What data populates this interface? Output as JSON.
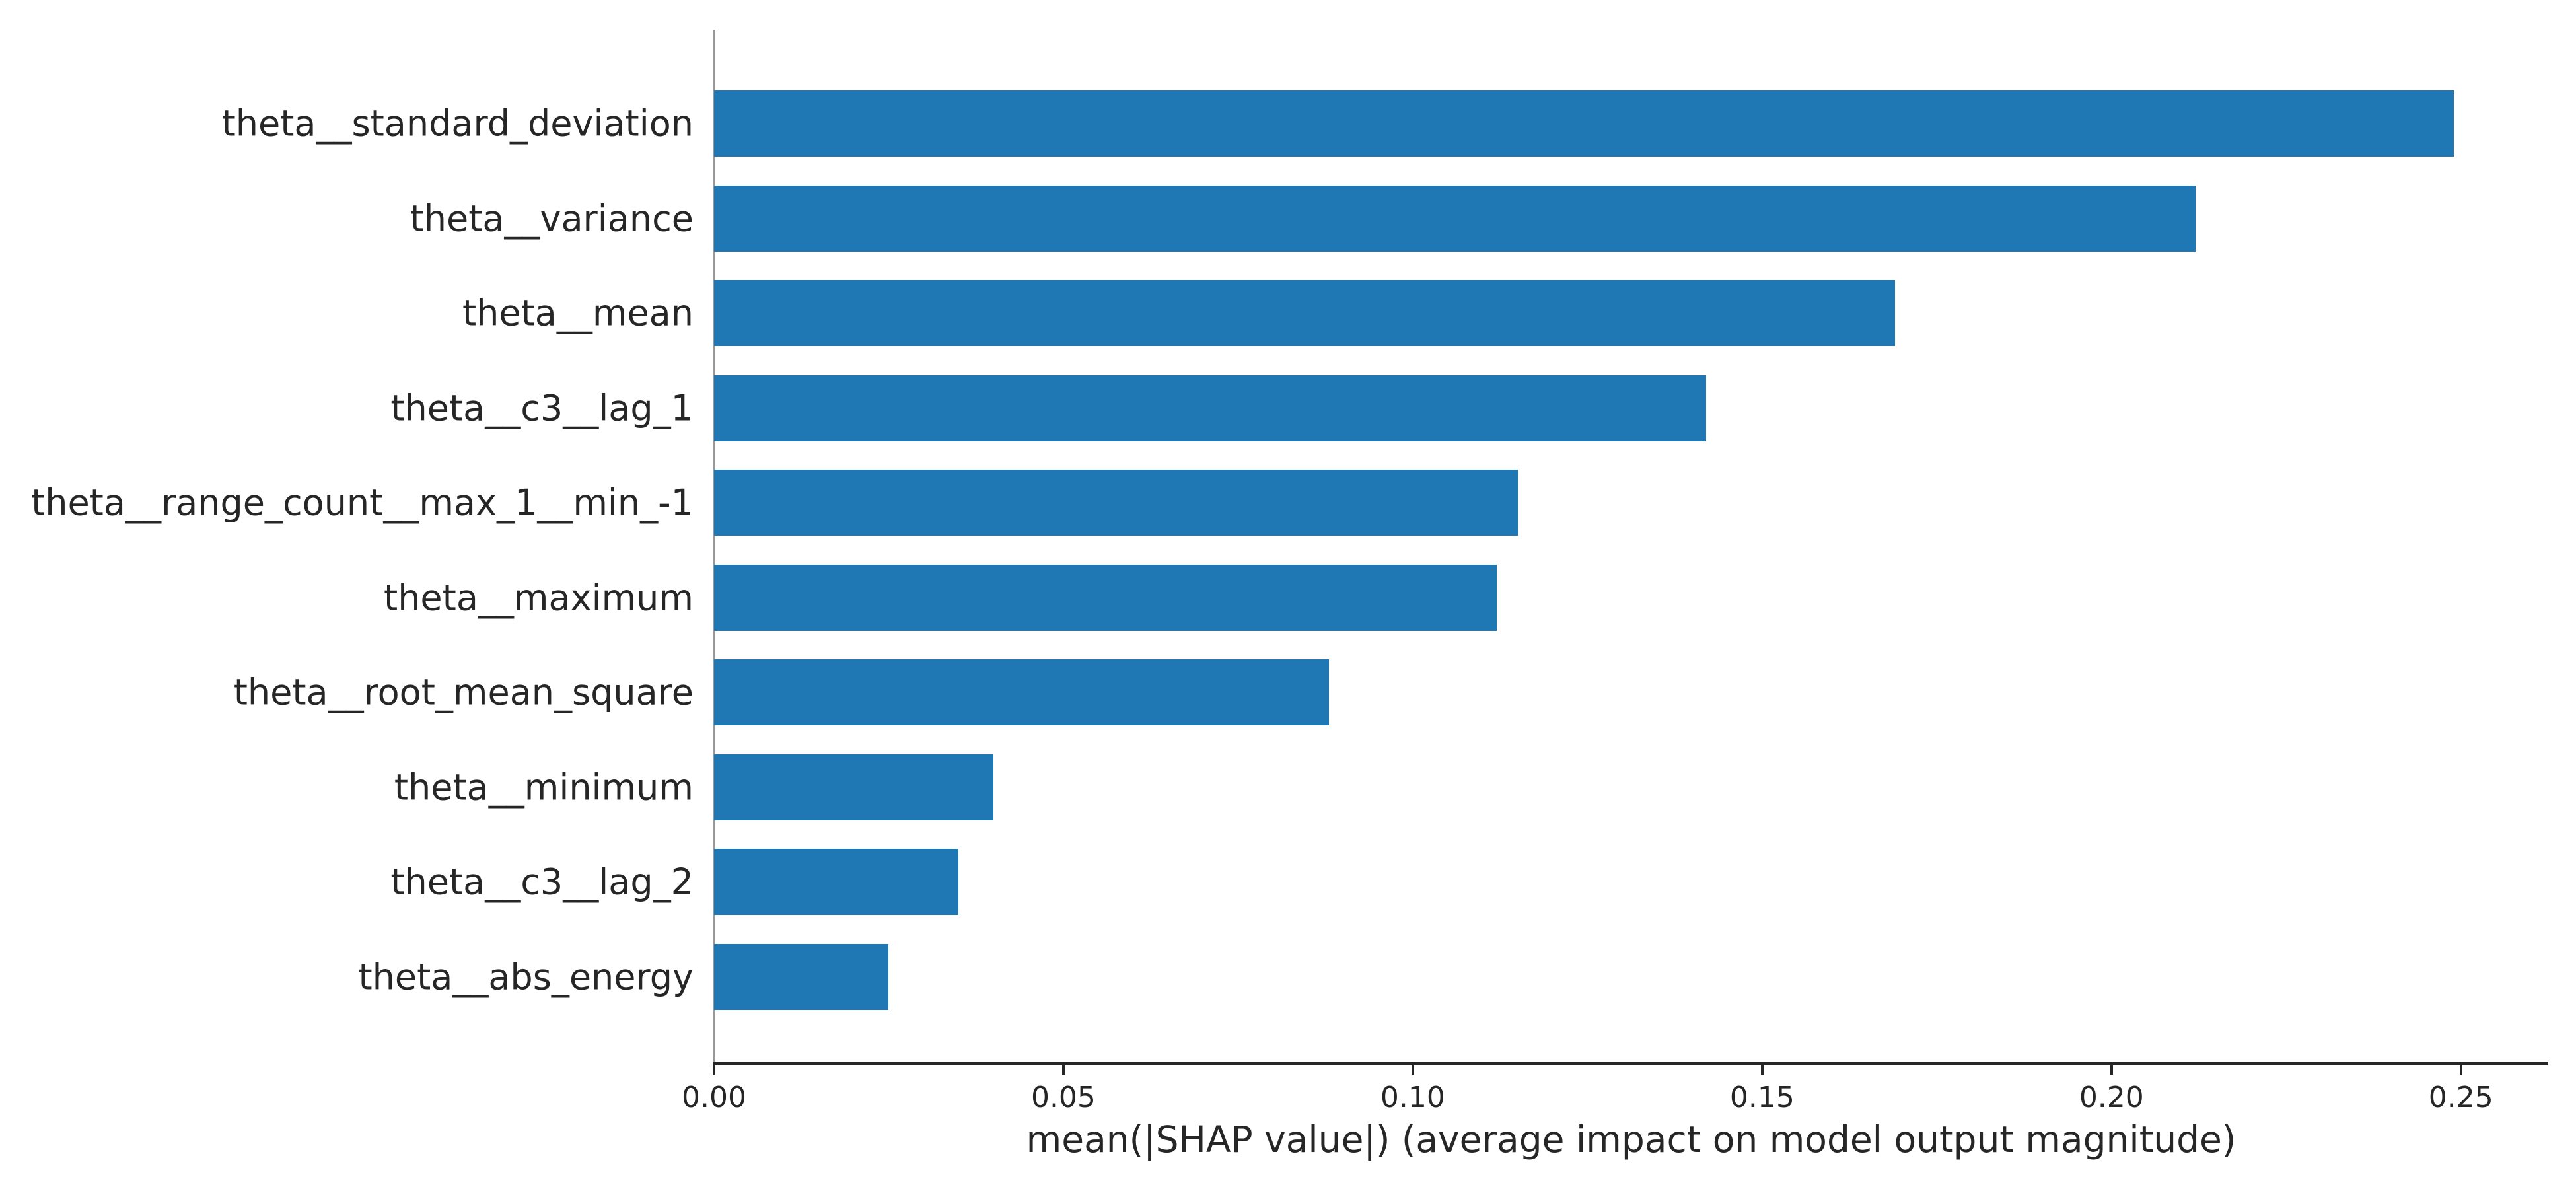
{
  "chart_data": {
    "type": "bar",
    "orientation": "horizontal",
    "xlabel": "mean(|SHAP value|) (average impact on model output magnitude)",
    "categories": [
      "theta__standard_deviation",
      "theta__variance",
      "theta__mean",
      "theta__c3__lag_1",
      "theta__range_count__max_1__min_-1",
      "theta__maximum",
      "theta__root_mean_square",
      "theta__minimum",
      "theta__c3__lag_2",
      "theta__abs_energy"
    ],
    "values": [
      0.249,
      0.212,
      0.169,
      0.142,
      0.115,
      0.112,
      0.088,
      0.04,
      0.035,
      0.025
    ],
    "x_ticks": [
      {
        "value": 0.0,
        "label": "0.00"
      },
      {
        "value": 0.05,
        "label": "0.05"
      },
      {
        "value": 0.1,
        "label": "0.10"
      },
      {
        "value": 0.15,
        "label": "0.15"
      },
      {
        "value": 0.2,
        "label": "0.20"
      },
      {
        "value": 0.25,
        "label": "0.25"
      }
    ],
    "xlim": [
      0,
      0.2625
    ],
    "grid": false,
    "legend": null,
    "colors": {
      "bar": "#1f77b4",
      "zero_line": "#999999",
      "spine": "#262626",
      "text": "#262626"
    }
  }
}
